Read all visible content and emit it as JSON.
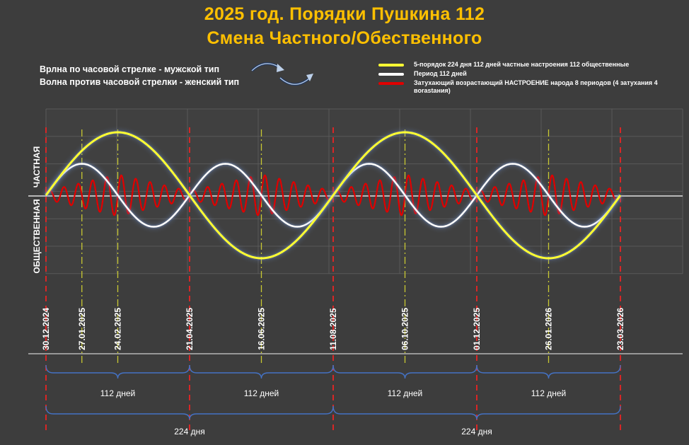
{
  "title": {
    "line1": "2025 год. Порядки Пушкина 112",
    "line2": "Смена Частного/Обественного"
  },
  "wave_labels": {
    "clockwise": "Врлна по часовой стрелке - мужской тип",
    "counterclockwise": "Волна против часовой  стрелки - женский тип"
  },
  "legend": [
    {
      "label": "5-порядок 224 дня 112 дней частные настроения 112 общественные",
      "color": "#ffff33"
    },
    {
      "label": "Период 112 дней",
      "color": "#ffffff"
    },
    {
      "label": "Затухающий возрастающий НАСТРОЕНИЕ народа  8 периодов (4 затухания 4 вorastания)",
      "color": "#e00000"
    }
  ],
  "axis_labels": {
    "upper": "ЧАСТНАЯ",
    "lower": "ОБЩЕСТВЕННАЯ"
  },
  "colors": {
    "background": "#3d3d3d",
    "title": "#ffc000",
    "brace": "#4472c4",
    "grid": "#595959",
    "red_marker": "#ff2020",
    "yellow_marker": "#c8c832"
  },
  "chart_data": {
    "type": "line",
    "x_dates": [
      "30.12.2024",
      "27.01.2025",
      "24.02.2025",
      "21.04.2025",
      "16.06.2025",
      "11.08.2025",
      "06.10.2025",
      "01.12.2025",
      "26.01.2026",
      "23.03.2026"
    ],
    "x_days": [
      0,
      28,
      56,
      112,
      168,
      224,
      280,
      336,
      392,
      448
    ],
    "red_marker_dates": [
      "30.12.2024",
      "21.04.2025",
      "11.08.2025",
      "01.12.2025",
      "23.03.2026"
    ],
    "series": [
      {
        "name": "5-порядок 224 дня 112 дней частные настроения 112 общественные",
        "period_days": 224,
        "amplitude": 1.0,
        "color": "#ffff33"
      },
      {
        "name": "Период 112 дней",
        "period_days": 112,
        "amplitude": 0.5,
        "color": "#ffffff"
      },
      {
        "name": "Затухающий возрастающий НАСТРОЕНИЕ народа  8 периодов (4 затухания 4 вorastания)",
        "segments": 8,
        "oscillations_per_segment": 5,
        "peak_amplitude": 0.33,
        "color": "#e00000"
      }
    ],
    "x_range_days": [
      0,
      448
    ],
    "y_range": [
      -1,
      1
    ]
  },
  "braces": {
    "short": [
      "112 дней",
      "112 дней",
      "112 дней",
      "112 дней"
    ],
    "long": [
      "224 дня",
      "224 дня"
    ]
  }
}
